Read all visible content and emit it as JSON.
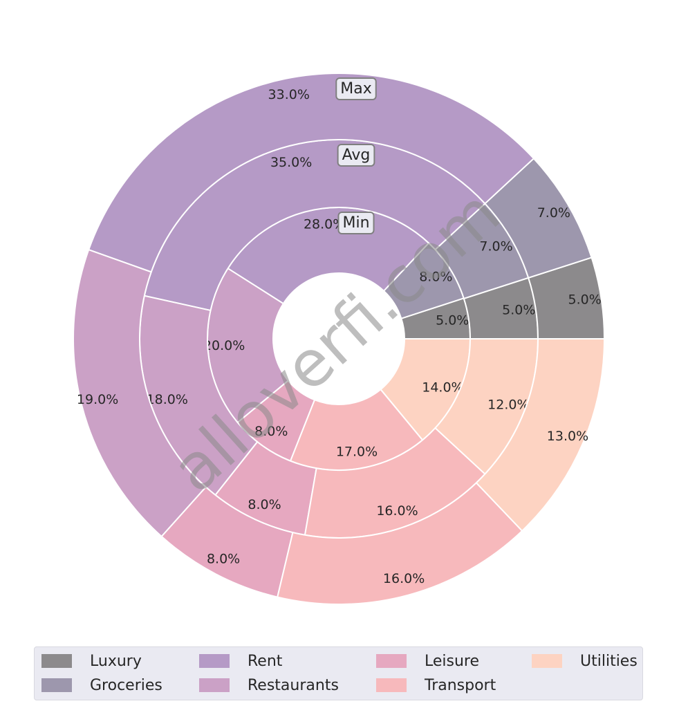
{
  "chart_data": {
    "type": "pie",
    "subtype": "nested-donut",
    "categories": [
      "Luxury",
      "Groceries",
      "Rent",
      "Restaurants",
      "Leisure",
      "Transport",
      "Utilities"
    ],
    "colors": [
      "#8c8a8c",
      "#9d97ad",
      "#b59ac6",
      "#cba1c6",
      "#e6a8c0",
      "#f7b9bc",
      "#fdd3c2"
    ],
    "series": [
      {
        "name": "Min",
        "values": [
          5,
          8,
          28,
          20,
          8,
          17,
          14
        ],
        "labels": [
          "5.0%",
          "8.0%",
          "28.0%",
          "20.0%",
          "8.0%",
          "17.0%",
          "14.0%"
        ]
      },
      {
        "name": "Avg",
        "values": [
          5,
          7,
          35,
          18,
          8,
          16,
          12
        ],
        "labels": [
          "5.0%",
          "7.0%",
          "35.0%",
          "18.0%",
          "8.0%",
          "16.0%",
          "12.0%"
        ]
      },
      {
        "name": "Max",
        "values": [
          5,
          7,
          33,
          19,
          8,
          16,
          13
        ],
        "labels": [
          "5.0%",
          "7.0%",
          "33.0%",
          "19.0%",
          "8.0%",
          "16.0%",
          "13.0%"
        ]
      }
    ],
    "legend": {
      "placement": "bottom",
      "entries": [
        "Luxury",
        "Groceries",
        "Rent",
        "Restaurants",
        "Leisure",
        "Transport",
        "Utilities"
      ]
    }
  },
  "watermark": "alloverfi.com"
}
